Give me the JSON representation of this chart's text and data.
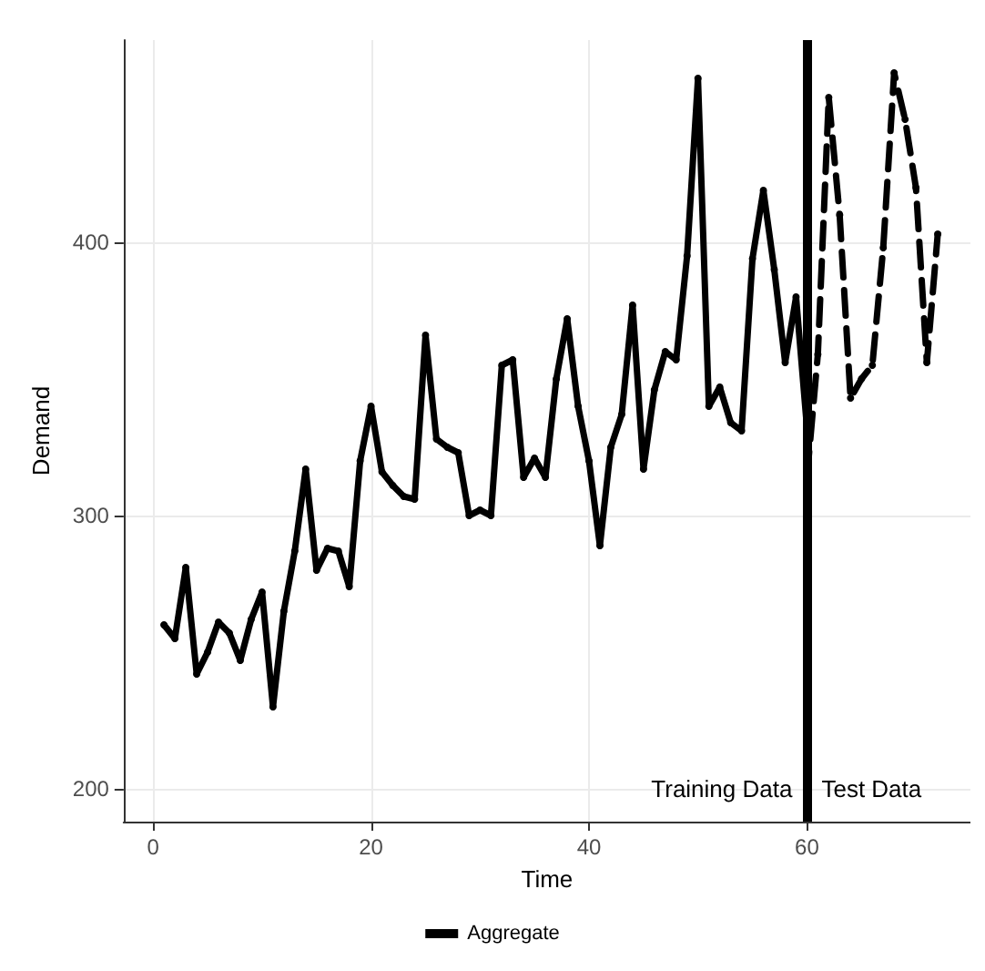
{
  "chart_data": {
    "type": "line",
    "xlabel": "Time",
    "ylabel": "Demand",
    "xlim": [
      -2.7,
      75
    ],
    "xticks": [
      0,
      20,
      40,
      60
    ],
    "ylim": [
      188,
      474
    ],
    "yticks": [
      200,
      300,
      400
    ],
    "grid": true,
    "legend": "bottom",
    "marker": "circle",
    "series": [
      {
        "name": "Aggregate",
        "color": "#000000",
        "line_style": "solid",
        "x": [
          1,
          2,
          3,
          4,
          5,
          6,
          7,
          8,
          9,
          10,
          11,
          12,
          13,
          14,
          15,
          16,
          17,
          18,
          19,
          20,
          21,
          22,
          23,
          24,
          25,
          26,
          27,
          28,
          29,
          30,
          31,
          32,
          33,
          34,
          35,
          36,
          37,
          38,
          39,
          40,
          41,
          42,
          43,
          44,
          45,
          46,
          47,
          48,
          49,
          50,
          51,
          52,
          53,
          54,
          55,
          56,
          57,
          58,
          59,
          60
        ],
        "values": [
          260,
          255,
          281,
          242,
          250,
          261,
          257,
          247,
          262,
          272,
          230,
          265,
          287,
          317,
          280,
          288,
          287,
          274,
          320,
          340,
          316,
          311,
          307,
          306,
          366,
          328,
          325,
          323,
          300,
          302,
          300,
          355,
          357,
          314,
          321,
          314,
          350,
          372,
          340,
          320,
          289,
          325,
          337,
          377,
          317,
          346,
          360,
          357,
          395,
          460,
          340,
          347,
          334,
          331,
          394,
          419,
          390,
          356,
          380,
          332
        ]
      },
      {
        "color": "#000000",
        "line_style": "dashed",
        "x": [
          60,
          61,
          62,
          63,
          64,
          65,
          66,
          67,
          68,
          69,
          70,
          71,
          72
        ],
        "values": [
          314,
          359,
          453,
          410,
          343,
          350,
          355,
          398,
          462,
          445,
          420,
          356,
          403
        ]
      }
    ],
    "ref_lines": [
      {
        "axis": "x",
        "value": 60,
        "color": "#000000"
      }
    ],
    "annotations": [
      "Training Data",
      "Test Data"
    ]
  }
}
